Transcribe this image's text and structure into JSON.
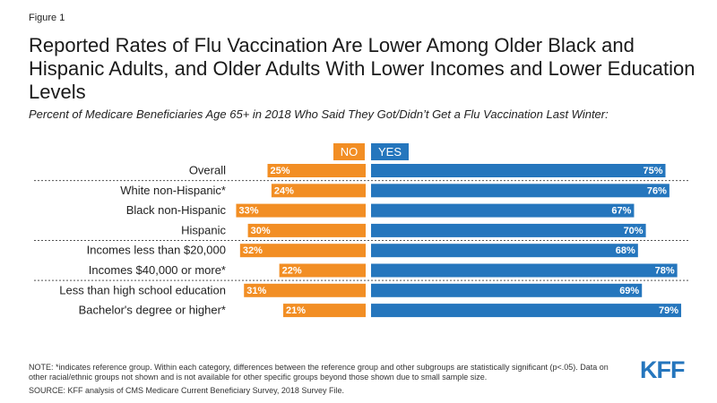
{
  "figure_label": "Figure 1",
  "title": "Reported Rates of Flu Vaccination Are Lower Among Older Black and Hispanic Adults, and Older Adults With Lower Incomes and Lower Education Levels",
  "subtitle": "Percent of Medicare Beneficiaries Age 65+ in 2018 Who Said They Got/Didn’t Get a Flu Vaccination Last Winter:",
  "note": "NOTE: *indicates reference group. Within each category, differences between the reference group and other subgroups are statistically significant (p<.05). Data on other racial/ethnic groups not shown and is not available for other specific groups beyond those shown due to small sample size.",
  "source": "SOURCE: KFF analysis of CMS Medicare Current Beneficiary Survey, 2018 Survey File.",
  "logo_text": "KFF",
  "colors": {
    "no": "#f28e24",
    "yes": "#2576bd",
    "divider": "#555555"
  },
  "chart_data": {
    "type": "bar",
    "orientation": "diverging-horizontal",
    "categories": [
      "Overall",
      "White non-Hispanic*",
      "Black non-Hispanic",
      "Hispanic",
      "Incomes less than $20,000",
      "Incomes $40,000 or more*",
      "Less than high school education",
      "Bachelor's degree or higher*"
    ],
    "series": [
      {
        "name": "NO",
        "values": [
          25,
          24,
          33,
          30,
          32,
          22,
          31,
          21
        ],
        "labels": [
          "25%",
          "24%",
          "33%",
          "30%",
          "32%",
          "22%",
          "31%",
          "21%"
        ]
      },
      {
        "name": "YES",
        "values": [
          75,
          76,
          67,
          70,
          68,
          78,
          69,
          79
        ],
        "labels": [
          "75%",
          "76%",
          "67%",
          "70%",
          "68%",
          "78%",
          "69%",
          "79%"
        ]
      }
    ],
    "group_dividers_after": [
      0,
      3,
      5
    ],
    "legend": "top",
    "grid": false
  }
}
